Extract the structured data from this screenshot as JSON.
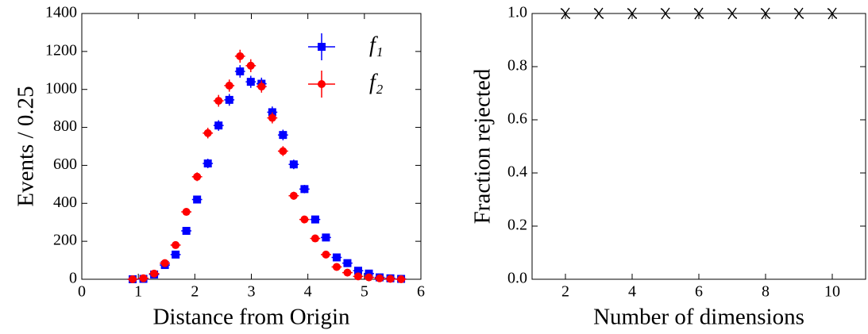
{
  "chart_data": [
    {
      "type": "errorbar",
      "xlabel": "Distance from Origin",
      "ylabel": "Events /  0.25",
      "x": [
        0.9,
        1.09,
        1.28,
        1.47,
        1.66,
        1.85,
        2.04,
        2.23,
        2.42,
        2.61,
        2.8,
        2.99,
        3.18,
        3.37,
        3.56,
        3.75,
        3.94,
        4.13,
        4.32,
        4.51,
        4.7,
        4.89,
        5.08,
        5.27,
        5.46,
        5.65
      ],
      "xerr": 0.09,
      "series": [
        {
          "name": "f₁",
          "color": "#0000ff",
          "marker": "square",
          "values": [
            0,
            2,
            25,
            75,
            130,
            255,
            420,
            610,
            810,
            945,
            1095,
            1040,
            1030,
            880,
            760,
            605,
            475,
            315,
            220,
            115,
            85,
            45,
            30,
            10,
            5,
            2
          ],
          "errors": [
            0,
            1,
            5,
            9,
            11,
            16,
            20,
            25,
            28,
            31,
            33,
            32,
            32,
            30,
            28,
            25,
            22,
            18,
            15,
            11,
            9,
            7,
            5,
            3,
            2,
            1
          ]
        },
        {
          "name": "f₂",
          "color": "#ff0000",
          "marker": "circle",
          "values": [
            0,
            5,
            30,
            85,
            180,
            355,
            540,
            770,
            940,
            1020,
            1175,
            1125,
            1015,
            850,
            675,
            440,
            315,
            215,
            130,
            65,
            35,
            15,
            10,
            5,
            2,
            0
          ],
          "errors": [
            0,
            2,
            5,
            9,
            13,
            19,
            23,
            28,
            31,
            32,
            34,
            34,
            32,
            29,
            26,
            21,
            18,
            15,
            11,
            8,
            6,
            4,
            3,
            2,
            1,
            0
          ]
        }
      ],
      "xlim": [
        0,
        6
      ],
      "xticks": [
        0,
        1,
        2,
        3,
        4,
        5,
        6
      ],
      "ylim": [
        0,
        1400
      ],
      "yticks": [
        0,
        200,
        400,
        600,
        800,
        1000,
        1200,
        1400
      ],
      "legend": "upper right"
    },
    {
      "type": "line",
      "xlabel": "Number of dimensions",
      "ylabel": "Fraction rejected",
      "x": [
        2,
        3,
        4,
        5,
        6,
        7,
        8,
        9,
        10
      ],
      "series": [
        {
          "color": "#000000",
          "marker": "chi",
          "linestyle": "dashed",
          "values": [
            1.0,
            1.0,
            1.0,
            1.0,
            1.0,
            1.0,
            1.0,
            1.0,
            1.0
          ]
        }
      ],
      "xlim": [
        1,
        11
      ],
      "xticks": [
        2,
        4,
        6,
        8,
        10
      ],
      "ylim": [
        0,
        1
      ],
      "yticks": [
        {
          "value": 0,
          "label": "0.0"
        },
        {
          "value": 0.2,
          "label": "0.2"
        },
        {
          "value": 0.4,
          "label": "0.4"
        },
        {
          "value": 0.6,
          "label": "0.6"
        },
        {
          "value": 0.8,
          "label": "0.8"
        },
        {
          "value": 1,
          "label": "1.0"
        }
      ]
    }
  ]
}
